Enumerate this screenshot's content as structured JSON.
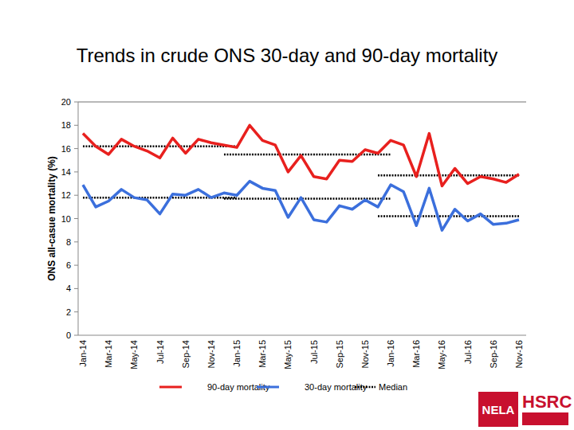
{
  "chart_data": {
    "type": "line",
    "title": "Trends in crude ONS 30-day and 90-day mortality",
    "y_label": "ONS all-casue mortality (%)",
    "categories": [
      "Jan-14",
      null,
      "Mar-14",
      null,
      "May-14",
      null,
      "Jul-14",
      null,
      "Sep-14",
      null,
      "Nov-14",
      null,
      "Jan-15",
      null,
      "Mar-15",
      null,
      "May-15",
      null,
      "Jul-15",
      null,
      "Sep-15",
      null,
      "Nov-15",
      null,
      "Jan-16",
      null,
      "Mar-16",
      null,
      "May-16",
      null,
      "Jul-16",
      null,
      "Sep-16",
      null,
      "Nov-16"
    ],
    "series": [
      {
        "name": "90-day mortality",
        "color": "#e8201e",
        "line_style": "solid",
        "values": [
          17.3,
          16.2,
          15.5,
          16.8,
          16.2,
          15.8,
          15.2,
          16.9,
          15.6,
          16.8,
          16.5,
          16.3,
          16.1,
          18.0,
          16.7,
          16.3,
          14.0,
          15.4,
          13.6,
          13.4,
          15.0,
          14.9,
          15.9,
          15.6,
          16.7,
          16.3,
          13.6,
          17.3,
          12.8,
          14.3,
          13.0,
          13.6,
          13.4,
          13.1,
          13.8
        ]
      },
      {
        "name": "30-day mortality",
        "color": "#3b6fdc",
        "line_style": "solid",
        "values": [
          12.9,
          11.0,
          11.5,
          12.5,
          11.8,
          11.6,
          10.4,
          12.1,
          12.0,
          12.5,
          11.8,
          12.2,
          12.0,
          13.2,
          12.6,
          12.4,
          10.1,
          11.8,
          9.9,
          9.7,
          11.1,
          10.8,
          11.6,
          11.0,
          12.9,
          12.3,
          9.4,
          12.6,
          9.0,
          10.8,
          9.8,
          10.4,
          9.5,
          9.6,
          9.9
        ]
      }
    ],
    "medians": {
      "name": "Median",
      "color": "#000000",
      "line_style": "dotted",
      "segments": [
        {
          "start_index": 0,
          "end_index": 12,
          "values": [
            16.2,
            11.8
          ]
        },
        {
          "start_index": 11,
          "end_index": 24,
          "values": [
            15.5,
            11.7
          ]
        },
        {
          "start_index": 23,
          "end_index": 34,
          "values": [
            13.7,
            10.2
          ]
        }
      ]
    },
    "ylim": [
      0,
      20
    ],
    "yticks": [
      0,
      2,
      4,
      6,
      8,
      10,
      12,
      14,
      16,
      18,
      20
    ],
    "grid": false,
    "legend": "bottom"
  },
  "logo": {
    "left": "NELA",
    "right": "HSRC"
  }
}
